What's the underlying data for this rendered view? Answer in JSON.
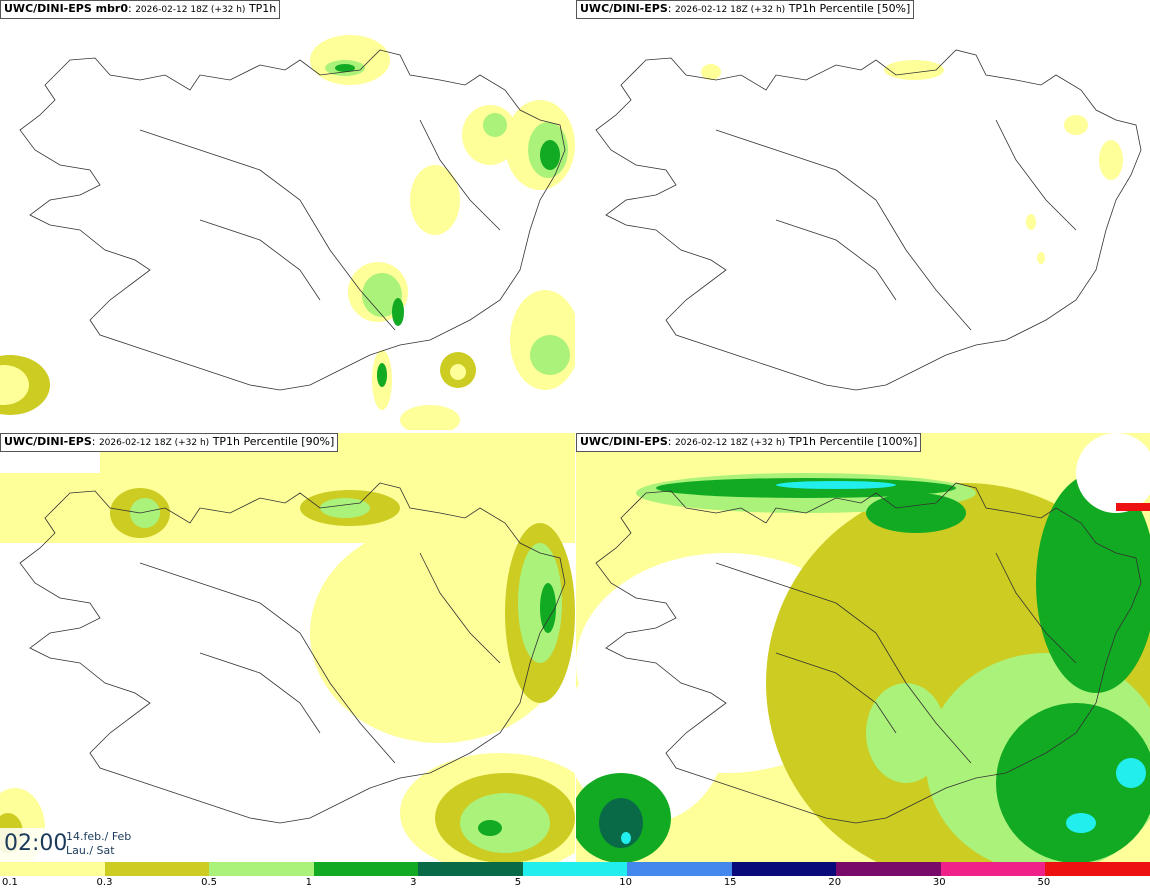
{
  "panels": [
    {
      "model": "UWC/DINI-EPS mbr0",
      "run": "2026-02-12 18Z (+32 h)",
      "field": "TP1h"
    },
    {
      "model": "UWC/DINI-EPS",
      "run": "2026-02-12 18Z (+32 h)",
      "field": "TP1h Percentile [50%]"
    },
    {
      "model": "UWC/DINI-EPS",
      "run": "2026-02-12 18Z (+32 h)",
      "field": "TP1h Percentile [90%]"
    },
    {
      "model": "UWC/DINI-EPS",
      "run": "2026-02-12 18Z (+32 h)",
      "field": "TP1h Percentile [100%]"
    }
  ],
  "time": {
    "clock": "02:00",
    "date_line1": "14.feb./ Feb",
    "date_line2": "Lau./ Sat"
  },
  "legend": {
    "labels": [
      "0.1",
      "0.3",
      "0.5",
      "1",
      "3",
      "5",
      "10",
      "15",
      "20",
      "30",
      "50"
    ],
    "colors": [
      "#ffff99",
      "#cccc22",
      "#aaf27a",
      "#11aa22",
      "#086a46",
      "#22eeee",
      "#4488ee",
      "#0a0a7a",
      "#7a0a6a",
      "#ee2288",
      "#ee1111"
    ]
  }
}
